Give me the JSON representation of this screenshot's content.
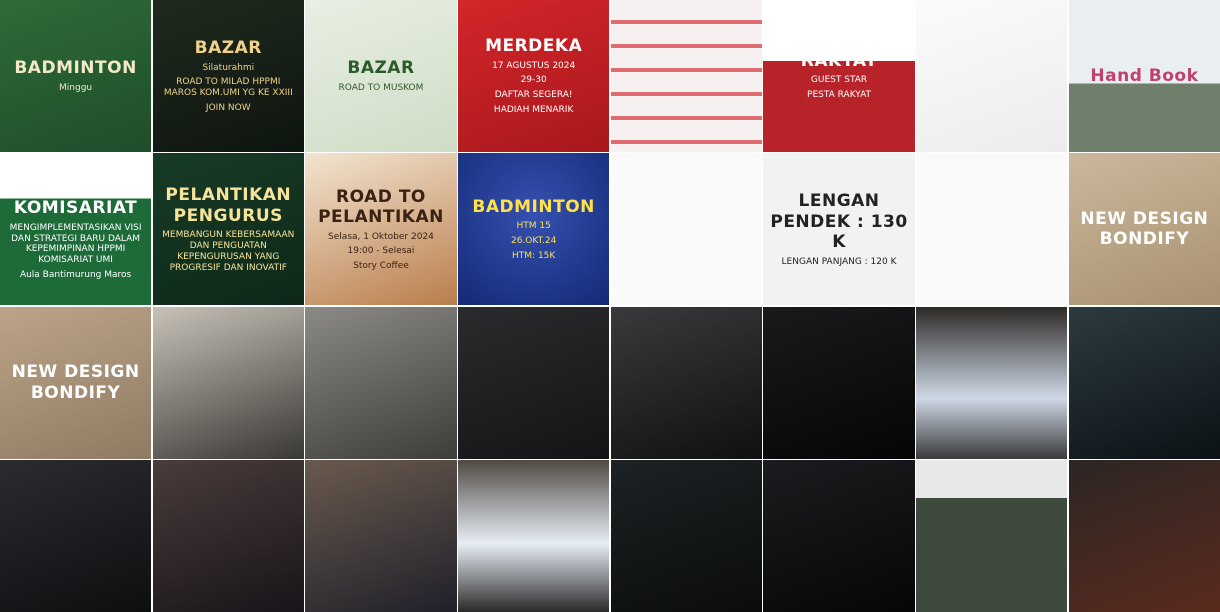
{
  "tiles": [
    [
      "BADMINTON",
      "Minggu"
    ],
    [
      "BAZAR",
      "Silaturahmi",
      "ROAD TO MILAD HPPMI MAROS KOM.UMI YG KE XXIII",
      "JOIN NOW"
    ],
    [
      "BAZAR",
      "ROAD TO MUSKOM"
    ],
    [
      "MERDEKA",
      "17 AGUSTUS 2024",
      "29-30",
      "DAFTAR SEGERA!",
      "HADIAH MENARIK"
    ],
    [],
    [
      "RAKYAT",
      "GUEST STAR",
      "PESTA RAKYAT"
    ],
    [],
    [
      "Hand Book"
    ],
    [
      "MUSYAWARAH KOMISARIAT",
      "MENGIMPLEMENTASIKAN VISI DAN STRATEGI BARU DALAM KEPEMIMPINAN HPPMI KOMISARIAT UMI",
      "Aula Bantimurung Maros"
    ],
    [
      "PELANTIKAN PENGURUS",
      "MEMBANGUN KEBERSAMAAN DAN PENGUATAN KEPENGURUSAN YANG PROGRESIF DAN INOVATIF"
    ],
    [
      "ROAD TO PELANTIKAN",
      "Selasa, 1 Oktober 2024",
      "19:00 - Selesai",
      "Story Coffee"
    ],
    [
      "BADMINTON",
      "HTM 15",
      "26.OKT.24",
      "HTM: 15K"
    ],
    [],
    [
      "LENGAN PENDEK : 130 K",
      "LENGAN PANJANG : 120 K"
    ],
    [],
    [
      "NEW DESIGN BONDIFY"
    ],
    [
      "NEW DESIGN BONDIFY"
    ],
    [],
    [],
    [],
    [],
    [],
    [],
    [],
    [],
    [],
    [],
    [],
    [],
    [],
    [],
    []
  ]
}
